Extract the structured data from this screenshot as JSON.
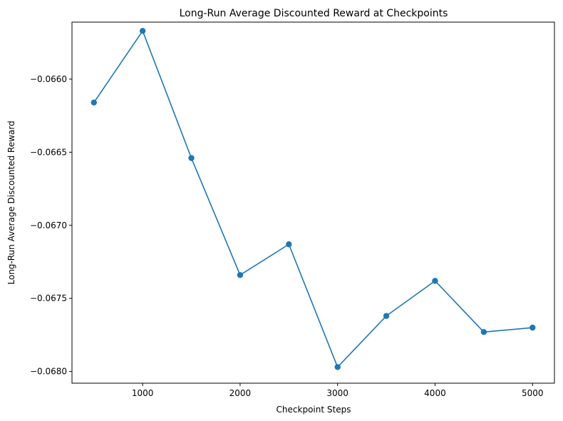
{
  "chart_data": {
    "type": "line",
    "title": "Long-Run Average Discounted Reward at Checkpoints",
    "xlabel": "Checkpoint Steps",
    "ylabel": "Long-Run Average Discounted Reward",
    "x": [
      500,
      1000,
      1500,
      2000,
      2500,
      3000,
      3500,
      4000,
      4500,
      5000
    ],
    "series": [
      {
        "values": [
          -0.06616,
          -0.06567,
          -0.06654,
          -0.06734,
          -0.06713,
          -0.06797,
          -0.06762,
          -0.06738,
          -0.06773,
          -0.0677
        ],
        "color": "#1f77b4",
        "marker": "circle"
      }
    ],
    "xlim": [
      275,
      5225
    ],
    "ylim": [
      -0.06808,
      -0.06561
    ],
    "xticks": [
      1000,
      2000,
      3000,
      4000,
      5000
    ],
    "xtick_labels": [
      "1000",
      "2000",
      "3000",
      "4000",
      "5000"
    ],
    "yticks": [
      -0.068,
      -0.0675,
      -0.067,
      -0.0665,
      -0.066
    ],
    "ytick_labels": [
      "−0.0680",
      "−0.0675",
      "−0.0670",
      "−0.0665",
      "−0.0660"
    ],
    "grid": false,
    "legend": false
  }
}
